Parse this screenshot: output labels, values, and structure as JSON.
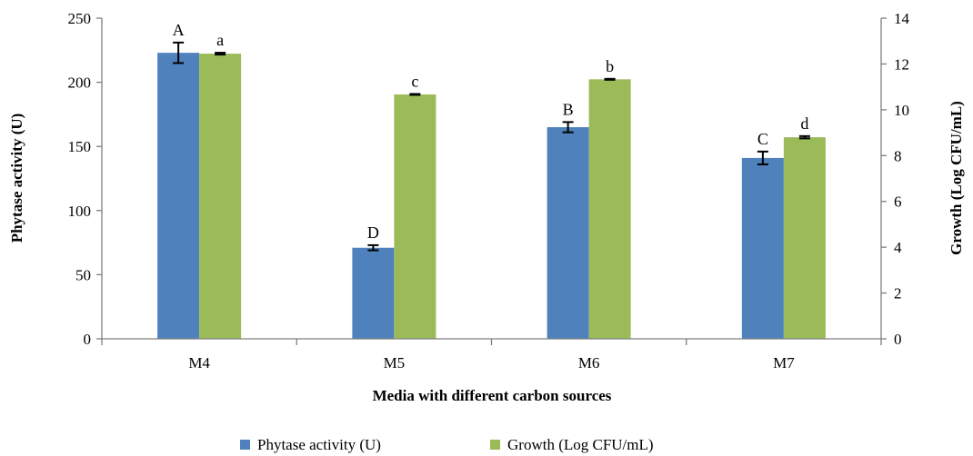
{
  "chart_data": {
    "type": "bar",
    "title": "",
    "xlabel": "Media with different carbon sources",
    "ylabel_left": "Phytase activity (U)",
    "ylabel_right": "Growth (Log CFU/mL)",
    "categories": [
      "M4",
      "M5",
      "M6",
      "M7"
    ],
    "y_left": {
      "min": 0,
      "max": 250,
      "step": 50
    },
    "y_right": {
      "min": 0,
      "max": 14,
      "step": 2
    },
    "grid": false,
    "legend_position": "bottom",
    "series": [
      {
        "name": "Phytase activity (U)",
        "axis": "left",
        "color": "#4f81bd",
        "values": [
          223,
          71,
          165,
          141
        ],
        "errors": [
          8,
          2,
          4,
          5
        ],
        "labels": [
          "A",
          "D",
          "B",
          "C"
        ]
      },
      {
        "name": "Growth (Log CFU/mL)",
        "axis": "right",
        "color": "#9bbb59",
        "values": [
          12.45,
          10.67,
          11.33,
          8.8
        ],
        "errors": [
          0.04,
          0.02,
          0.02,
          0.05
        ],
        "labels": [
          "a",
          "c",
          "b",
          "d"
        ]
      }
    ]
  }
}
